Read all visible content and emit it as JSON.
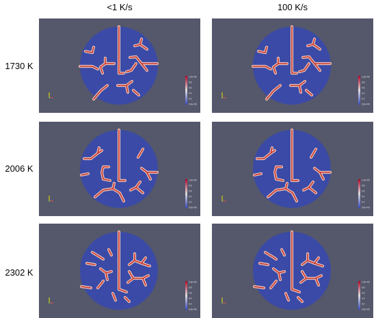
{
  "column_headers": [
    "<1 K/s",
    "100 K/s"
  ],
  "row_labels": [
    "1730 K",
    "2006 K",
    "2302 K"
  ],
  "colors": {
    "panel_background": "#55576b",
    "disk": "#3a4aa6",
    "boundary_core": "#c8342e",
    "boundary_halo": "#e8c2b8"
  },
  "colorbar_ticks": [
    "1.0e+00",
    "0.8",
    "0.6",
    "0.4",
    "0.2",
    "0.0e+00"
  ]
}
